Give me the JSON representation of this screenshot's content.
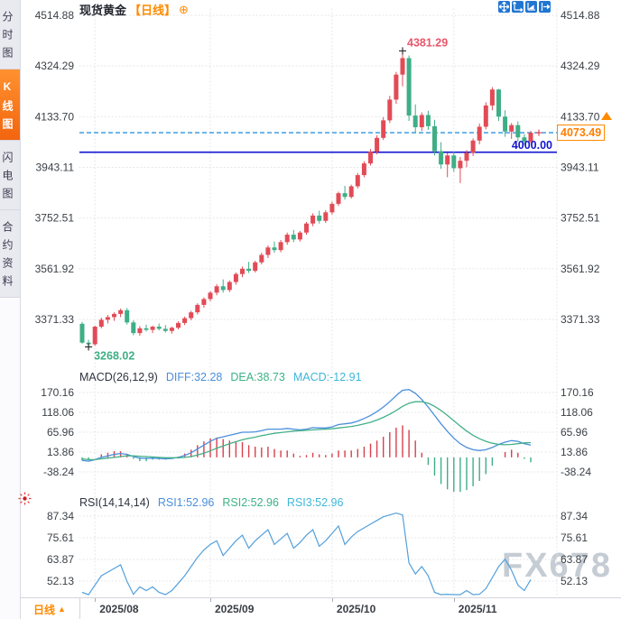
{
  "header": {
    "title": "现货黄金",
    "period_tag": "【日线】",
    "add_icon_glyph": "⊕"
  },
  "toolbar": {
    "icons": [
      "pan-crosshair",
      "fit-scale",
      "auto-scale",
      "snap-latest"
    ]
  },
  "sidebar": {
    "tabs": [
      {
        "label": "分时图",
        "active": false
      },
      {
        "label": "K线图",
        "active": true
      },
      {
        "label": "闪电图",
        "active": false
      },
      {
        "label": "合约资料",
        "active": false
      }
    ]
  },
  "indicators": {
    "macd": {
      "title": "MACD(26,12,9)",
      "diff": "DIFF:32.28",
      "dea": "DEA:38.73",
      "macd": "MACD:-12.91"
    },
    "rsi": {
      "title": "RSI(14,14,14)",
      "rsi1": "RSI1:52.96",
      "rsi2": "RSI2:52.96",
      "rsi3": "RSI3:52.96"
    }
  },
  "price_marks": {
    "current": "4073.49",
    "hline": "4000.00",
    "high": "4381.29",
    "low": "3268.02"
  },
  "bottom_bar": {
    "period": "日线",
    "arrow": "▲",
    "dates": [
      "2025/08",
      "2025/09",
      "2025/10",
      "2025/11"
    ]
  },
  "watermark": "FX678",
  "colors": {
    "up": "#e24b56",
    "down": "#3fae87",
    "accent_orange": "#ff8a00",
    "hline_blue": "#1216cf",
    "dash_blue": "#2f95e0",
    "diff_blue": "#4a8fdc",
    "dea_green": "#43b087",
    "rsi_blue": "#53a0dc"
  },
  "chart_data": [
    {
      "type": "candlestick",
      "title": "现货黄金 【日线】",
      "y_axis": [
        4514.88,
        4324.29,
        4133.7,
        3943.11,
        3752.51,
        3561.92,
        3371.33
      ],
      "x_ticks": [
        {
          "label": "2025/08",
          "index": 2
        },
        {
          "label": "2025/09",
          "index": 20
        },
        {
          "label": "2025/10",
          "index": 39
        },
        {
          "label": "2025/11",
          "index": 58
        }
      ],
      "up_color": "#e24b56",
      "down_color": "#3fae87",
      "annotations": {
        "high": {
          "value": 4381.29,
          "index": 50,
          "color": "#e8566b"
        },
        "low": {
          "value": 3268.02,
          "index": 1,
          "color": "#3fae87"
        },
        "hline": {
          "value": 4000.0,
          "label": "4000.00",
          "color": "#1216cf"
        },
        "last": {
          "value": 4073.49,
          "label": "4073.49",
          "color": "#ff8a00"
        }
      },
      "ohlc": [
        [
          3355,
          3362,
          3280,
          3284
        ],
        [
          3284,
          3295,
          3268,
          3278
        ],
        [
          3278,
          3348,
          3272,
          3344
        ],
        [
          3344,
          3378,
          3338,
          3370
        ],
        [
          3370,
          3388,
          3356,
          3380
        ],
        [
          3380,
          3398,
          3366,
          3392
        ],
        [
          3392,
          3412,
          3380,
          3406
        ],
        [
          3406,
          3414,
          3352,
          3360
        ],
        [
          3360,
          3368,
          3312,
          3320
        ],
        [
          3320,
          3346,
          3310,
          3338
        ],
        [
          3338,
          3352,
          3326,
          3332
        ],
        [
          3332,
          3348,
          3320,
          3344
        ],
        [
          3344,
          3356,
          3330,
          3336
        ],
        [
          3336,
          3350,
          3322,
          3328
        ],
        [
          3328,
          3344,
          3318,
          3340
        ],
        [
          3340,
          3364,
          3334,
          3358
        ],
        [
          3358,
          3382,
          3350,
          3376
        ],
        [
          3376,
          3404,
          3368,
          3398
        ],
        [
          3398,
          3432,
          3390,
          3426
        ],
        [
          3426,
          3454,
          3416,
          3448
        ],
        [
          3448,
          3478,
          3440,
          3472
        ],
        [
          3472,
          3504,
          3462,
          3496
        ],
        [
          3496,
          3522,
          3472,
          3482
        ],
        [
          3482,
          3518,
          3474,
          3512
        ],
        [
          3512,
          3548,
          3502,
          3542
        ],
        [
          3542,
          3570,
          3530,
          3562
        ],
        [
          3562,
          3588,
          3546,
          3554
        ],
        [
          3554,
          3592,
          3548,
          3586
        ],
        [
          3586,
          3622,
          3578,
          3614
        ],
        [
          3614,
          3650,
          3602,
          3642
        ],
        [
          3642,
          3664,
          3622,
          3632
        ],
        [
          3632,
          3670,
          3624,
          3662
        ],
        [
          3662,
          3698,
          3652,
          3690
        ],
        [
          3690,
          3708,
          3662,
          3672
        ],
        [
          3672,
          3704,
          3664,
          3698
        ],
        [
          3698,
          3738,
          3690,
          3732
        ],
        [
          3732,
          3770,
          3722,
          3762
        ],
        [
          3762,
          3780,
          3732,
          3742
        ],
        [
          3742,
          3782,
          3734,
          3774
        ],
        [
          3774,
          3814,
          3766,
          3806
        ],
        [
          3806,
          3852,
          3798,
          3846
        ],
        [
          3846,
          3874,
          3822,
          3832
        ],
        [
          3832,
          3878,
          3826,
          3872
        ],
        [
          3872,
          3922,
          3864,
          3914
        ],
        [
          3914,
          3966,
          3906,
          3958
        ],
        [
          3958,
          4012,
          3950,
          4002
        ],
        [
          4002,
          4064,
          3992,
          4054
        ],
        [
          4054,
          4132,
          4046,
          4120
        ],
        [
          4120,
          4212,
          4110,
          4198
        ],
        [
          4198,
          4302,
          4182,
          4292
        ],
        [
          4292,
          4381.29,
          4248,
          4354
        ],
        [
          4354,
          4364,
          4118,
          4138
        ],
        [
          4138,
          4180,
          4074,
          4094
        ],
        [
          4094,
          4150,
          4080,
          4140
        ],
        [
          4140,
          4156,
          4084,
          4098
        ],
        [
          4098,
          4122,
          3988,
          4004
        ],
        [
          4004,
          4038,
          3938,
          3954
        ],
        [
          3954,
          3998,
          3906,
          3988
        ],
        [
          3988,
          4002,
          3926,
          3940
        ],
        [
          3940,
          3982,
          3884,
          3968
        ],
        [
          3968,
          4008,
          3944,
          3998
        ],
        [
          3998,
          4052,
          3986,
          4044
        ],
        [
          4044,
          4108,
          4030,
          4096
        ],
        [
          4096,
          4188,
          4086,
          4176
        ],
        [
          4176,
          4245,
          4158,
          4236
        ],
        [
          4236,
          4238,
          4118,
          4134
        ],
        [
          4134,
          4158,
          4058,
          4078
        ],
        [
          4078,
          4110,
          4050,
          4102
        ],
        [
          4102,
          4116,
          4040,
          4056
        ],
        [
          4056,
          4068,
          4028,
          4040
        ],
        [
          4040,
          4080,
          4034,
          4073.49
        ]
      ]
    },
    {
      "type": "macd",
      "title": "MACD(26,12,9)",
      "y_axis": [
        170.16,
        118.06,
        65.96,
        13.86,
        -38.24
      ],
      "pos_color": "#d9404d",
      "neg_color": "#3fae87",
      "histogram_rule": "2*(DIFF-DEA)",
      "last": {
        "diff": 32.28,
        "dea": 38.73,
        "macd": -12.91
      },
      "series": [
        {
          "name": "DIFF",
          "color": "#4a8fdc",
          "values": [
            -8,
            -10,
            -6,
            0,
            4,
            8,
            10,
            8,
            2,
            -2,
            -3,
            -2,
            -3,
            -4,
            -3,
            0,
            5,
            12,
            22,
            32,
            42,
            50,
            54,
            58,
            62,
            66,
            66,
            67,
            70,
            74,
            74,
            74,
            76,
            74,
            72,
            74,
            78,
            77,
            77,
            80,
            86,
            88,
            90,
            95,
            102,
            110,
            120,
            132,
            146,
            162,
            176,
            178,
            168,
            152,
            132,
            110,
            88,
            68,
            50,
            36,
            26,
            20,
            18,
            20,
            26,
            34,
            40,
            44,
            42,
            36,
            32.28
          ]
        },
        {
          "name": "DEA",
          "color": "#43b087",
          "values": [
            -4,
            -6,
            -6,
            -4,
            -2,
            0,
            2,
            4,
            4,
            3,
            2,
            1,
            0,
            -1,
            -1,
            -1,
            0,
            2,
            6,
            11,
            17,
            24,
            30,
            36,
            41,
            46,
            50,
            53,
            57,
            60,
            63,
            65,
            67,
            69,
            70,
            71,
            72,
            73,
            74,
            75,
            77,
            79,
            81,
            84,
            88,
            92,
            98,
            105,
            113,
            123,
            134,
            142,
            146,
            146,
            142,
            134,
            123,
            110,
            96,
            82,
            69,
            58,
            49,
            42,
            37,
            34,
            33,
            34,
            36,
            38,
            38.73
          ]
        }
      ]
    },
    {
      "type": "line",
      "title": "RSI(14,14,14)",
      "y_axis": [
        87.34,
        75.61,
        63.87,
        52.13
      ],
      "last": {
        "rsi1": 52.96,
        "rsi2": 52.96,
        "rsi3": 52.96
      },
      "series": [
        {
          "name": "RSI1",
          "color": "#53a0dc",
          "values": [
            46,
            42,
            50,
            55,
            57,
            59,
            61,
            52,
            45,
            49,
            47,
            49,
            46,
            44,
            47,
            51,
            55,
            60,
            65,
            69,
            72,
            74,
            66,
            70,
            74,
            77,
            70,
            74,
            77,
            80,
            72,
            75,
            78,
            70,
            73,
            77,
            80,
            71,
            74,
            78,
            82,
            72,
            76,
            79,
            81,
            83,
            85,
            87,
            88,
            89,
            88,
            62,
            56,
            60,
            55,
            46,
            41,
            45,
            41,
            44,
            47,
            42,
            45,
            48,
            54,
            60,
            64,
            58,
            50,
            47,
            52.96
          ]
        },
        {
          "name": "RSI2",
          "color": "#43b087",
          "note": "overlaps RSI1"
        },
        {
          "name": "RSI3",
          "color": "#3fb6d8",
          "note": "overlaps RSI1"
        }
      ]
    }
  ]
}
